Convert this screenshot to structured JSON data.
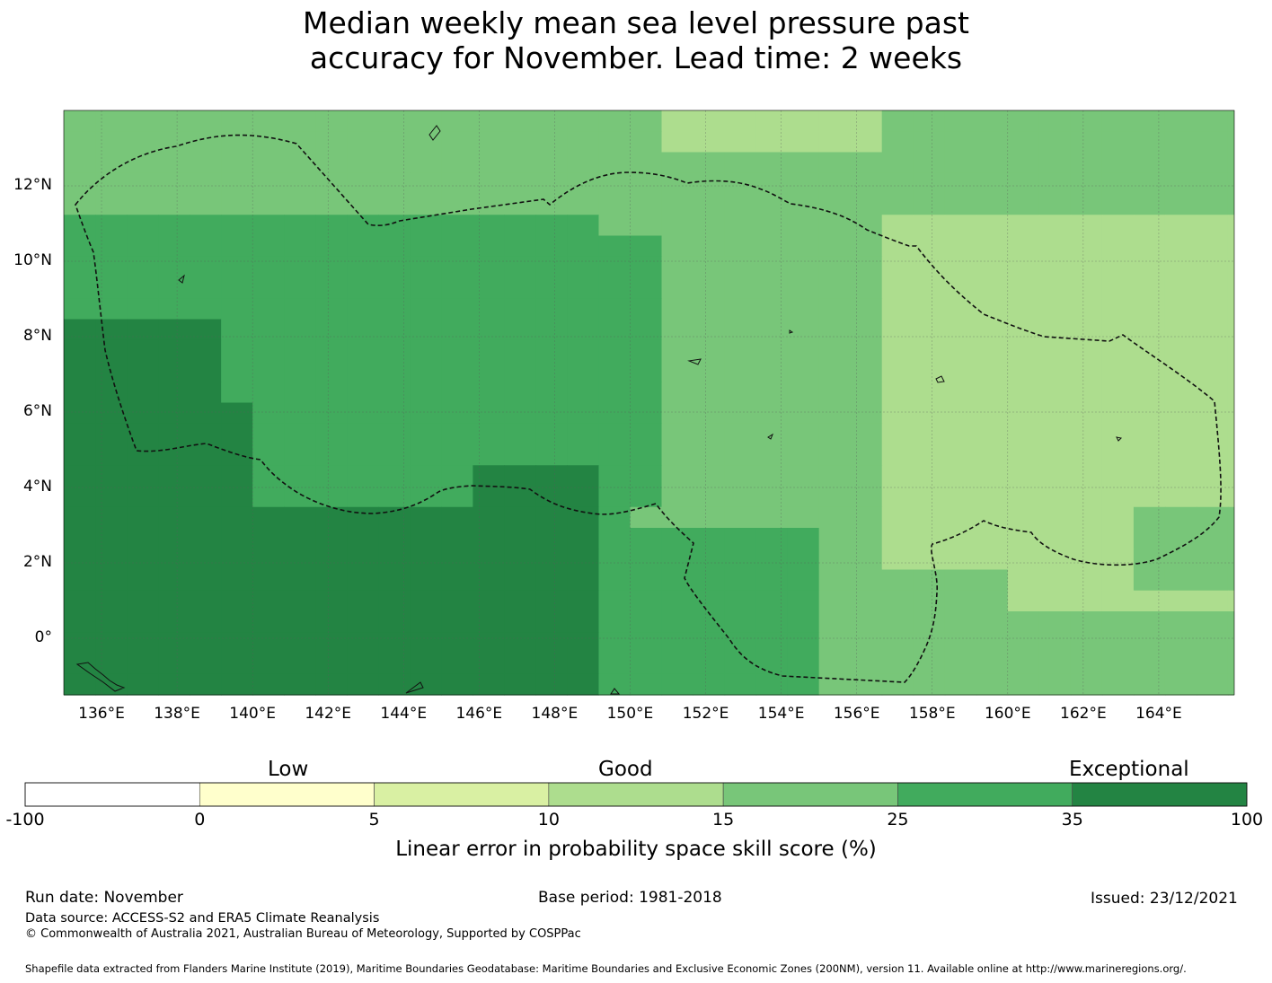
{
  "title": {
    "line1": "Median weekly mean sea level pressure past",
    "line2": "accuracy for November. Lead time: 2 weeks"
  },
  "map": {
    "lon_range": [
      135,
      166
    ],
    "lat_range": [
      -1.5,
      14
    ],
    "x_ticks": [
      "136°E",
      "138°E",
      "140°E",
      "142°E",
      "144°E",
      "146°E",
      "148°E",
      "150°E",
      "152°E",
      "154°E",
      "156°E",
      "158°E",
      "160°E",
      "162°E",
      "164°E"
    ],
    "y_ticks": [
      "12°N",
      "10°N",
      "8°N",
      "6°N",
      "4°N",
      "2°N",
      "0°"
    ],
    "colors": [
      "#ffffff",
      "#ffffcc",
      "#d9f0a3",
      "#addd8e",
      "#78c679",
      "#41ab5d",
      "#238443"
    ]
  },
  "colorbar": {
    "categories": [
      "Low",
      "Good",
      "Exceptional"
    ],
    "ticks": [
      "-100",
      "0",
      "5",
      "10",
      "15",
      "25",
      "35",
      "100"
    ],
    "label": "Linear error in probability space skill score (%)"
  },
  "footer": {
    "run_date": "Run date: November",
    "base_period": "Base period: 1981-2018",
    "issued": "Issued: 23/12/2021",
    "data_source": "Data source: ACCESS-S2 and ERA5 Climate Reanalysis",
    "copyright": "© Commonwealth of Australia 2021, Australian Bureau of Meteorology, Supported by COSPPac",
    "shapefile": "Shapefile data extracted from Flanders Marine Institute (2019), Maritime Boundaries Geodatabase: Maritime Boundaries and Exclusive Economic Zones (200NM), version 11. Available online at http://www.marineregions.org/."
  }
}
